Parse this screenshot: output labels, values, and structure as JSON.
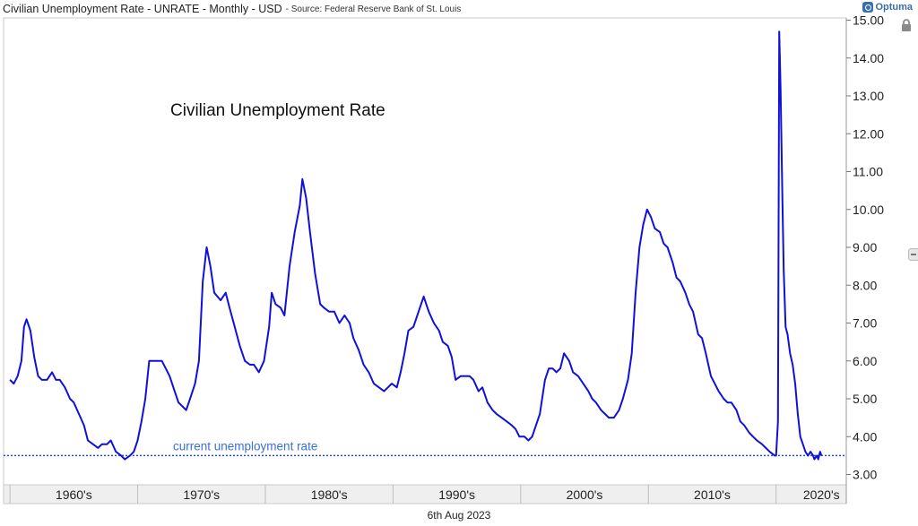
{
  "header": {
    "title": "Civilian Unemployment Rate - UNRATE - Monthly - USD",
    "source": "- Source: Federal Reserve Bank of St. Louis",
    "logo": "Optuma"
  },
  "footer": {
    "date": "6th Aug 2023"
  },
  "icons": {
    "lock": "lock-icon",
    "scroll": "scroll-handle-icon"
  },
  "colors": {
    "line": "#1010dd",
    "reference": "#2255cc",
    "annotation": "#3a6fd8"
  },
  "chart_data": {
    "type": "line",
    "title": "Civilian Unemployment Rate",
    "xlabel": "",
    "ylabel": "",
    "x_range": [
      1959.5,
      2025.5
    ],
    "ylim": [
      2.8,
      15.2
    ],
    "y_ticks": [
      "3.00",
      "4.00",
      "5.00",
      "6.00",
      "7.00",
      "8.00",
      "9.00",
      "10.00",
      "11.00",
      "12.00",
      "13.00",
      "14.00",
      "15.00"
    ],
    "y_axis_position": "right",
    "x_labels": [
      {
        "label": "1960's",
        "start": 1960
      },
      {
        "label": "1970's",
        "start": 1970
      },
      {
        "label": "1980's",
        "start": 1980
      },
      {
        "label": "1990's",
        "start": 1990
      },
      {
        "label": "2000's",
        "start": 2000
      },
      {
        "label": "2010's",
        "start": 2010
      },
      {
        "label": "2020's",
        "start": 2020
      }
    ],
    "grid": false,
    "reference_line": {
      "label": "current unemployment rate",
      "value": 3.5
    },
    "series": [
      {
        "values": [
          [
            1960.0,
            5.5
          ],
          [
            1960.3,
            5.4
          ],
          [
            1960.6,
            5.6
          ],
          [
            1960.9,
            6.0
          ],
          [
            1961.1,
            6.9
          ],
          [
            1961.3,
            7.1
          ],
          [
            1961.6,
            6.8
          ],
          [
            1961.9,
            6.1
          ],
          [
            1962.2,
            5.6
          ],
          [
            1962.5,
            5.5
          ],
          [
            1962.9,
            5.5
          ],
          [
            1963.3,
            5.7
          ],
          [
            1963.6,
            5.5
          ],
          [
            1963.9,
            5.5
          ],
          [
            1964.3,
            5.3
          ],
          [
            1964.7,
            5.0
          ],
          [
            1965.0,
            4.9
          ],
          [
            1965.4,
            4.6
          ],
          [
            1965.8,
            4.3
          ],
          [
            1966.1,
            3.9
          ],
          [
            1966.5,
            3.8
          ],
          [
            1966.9,
            3.7
          ],
          [
            1967.2,
            3.8
          ],
          [
            1967.6,
            3.8
          ],
          [
            1967.9,
            3.9
          ],
          [
            1968.3,
            3.6
          ],
          [
            1968.7,
            3.5
          ],
          [
            1969.0,
            3.4
          ],
          [
            1969.4,
            3.5
          ],
          [
            1969.7,
            3.6
          ],
          [
            1970.0,
            3.9
          ],
          [
            1970.3,
            4.4
          ],
          [
            1970.6,
            5.0
          ],
          [
            1970.9,
            6.0
          ],
          [
            1971.3,
            6.0
          ],
          [
            1971.6,
            6.0
          ],
          [
            1971.9,
            6.0
          ],
          [
            1972.2,
            5.8
          ],
          [
            1972.5,
            5.6
          ],
          [
            1972.9,
            5.2
          ],
          [
            1973.2,
            4.9
          ],
          [
            1973.5,
            4.8
          ],
          [
            1973.8,
            4.7
          ],
          [
            1974.2,
            5.1
          ],
          [
            1974.5,
            5.4
          ],
          [
            1974.8,
            6.0
          ],
          [
            1975.1,
            8.1
          ],
          [
            1975.4,
            9.0
          ],
          [
            1975.7,
            8.5
          ],
          [
            1976.0,
            7.8
          ],
          [
            1976.5,
            7.6
          ],
          [
            1976.9,
            7.8
          ],
          [
            1977.2,
            7.4
          ],
          [
            1977.6,
            6.9
          ],
          [
            1978.0,
            6.4
          ],
          [
            1978.4,
            6.0
          ],
          [
            1978.8,
            5.9
          ],
          [
            1979.1,
            5.9
          ],
          [
            1979.5,
            5.7
          ],
          [
            1979.9,
            6.0
          ],
          [
            1980.3,
            6.9
          ],
          [
            1980.5,
            7.8
          ],
          [
            1980.8,
            7.5
          ],
          [
            1981.2,
            7.4
          ],
          [
            1981.5,
            7.2
          ],
          [
            1981.9,
            8.5
          ],
          [
            1982.3,
            9.4
          ],
          [
            1982.7,
            10.1
          ],
          [
            1982.9,
            10.8
          ],
          [
            1983.2,
            10.3
          ],
          [
            1983.5,
            9.4
          ],
          [
            1983.9,
            8.3
          ],
          [
            1984.3,
            7.5
          ],
          [
            1984.6,
            7.4
          ],
          [
            1985.0,
            7.3
          ],
          [
            1985.4,
            7.3
          ],
          [
            1985.8,
            7.0
          ],
          [
            1986.2,
            7.2
          ],
          [
            1986.6,
            7.0
          ],
          [
            1986.9,
            6.6
          ],
          [
            1987.3,
            6.3
          ],
          [
            1987.7,
            5.9
          ],
          [
            1988.1,
            5.7
          ],
          [
            1988.5,
            5.4
          ],
          [
            1988.9,
            5.3
          ],
          [
            1989.3,
            5.2
          ],
          [
            1989.6,
            5.3
          ],
          [
            1989.9,
            5.4
          ],
          [
            1990.3,
            5.3
          ],
          [
            1990.6,
            5.7
          ],
          [
            1990.9,
            6.2
          ],
          [
            1991.2,
            6.8
          ],
          [
            1991.6,
            6.9
          ],
          [
            1992.0,
            7.3
          ],
          [
            1992.4,
            7.7
          ],
          [
            1992.8,
            7.3
          ],
          [
            1993.2,
            7.0
          ],
          [
            1993.6,
            6.8
          ],
          [
            1993.9,
            6.5
          ],
          [
            1994.3,
            6.4
          ],
          [
            1994.6,
            6.1
          ],
          [
            1994.9,
            5.5
          ],
          [
            1995.3,
            5.6
          ],
          [
            1995.6,
            5.6
          ],
          [
            1996.0,
            5.6
          ],
          [
            1996.3,
            5.5
          ],
          [
            1996.7,
            5.2
          ],
          [
            1997.0,
            5.3
          ],
          [
            1997.4,
            4.9
          ],
          [
            1997.8,
            4.7
          ],
          [
            1998.1,
            4.6
          ],
          [
            1998.5,
            4.5
          ],
          [
            1998.9,
            4.4
          ],
          [
            1999.3,
            4.3
          ],
          [
            1999.6,
            4.2
          ],
          [
            1999.9,
            4.0
          ],
          [
            2000.3,
            4.0
          ],
          [
            2000.6,
            3.9
          ],
          [
            2000.9,
            4.0
          ],
          [
            2001.2,
            4.3
          ],
          [
            2001.5,
            4.6
          ],
          [
            2001.9,
            5.5
          ],
          [
            2002.2,
            5.8
          ],
          [
            2002.5,
            5.8
          ],
          [
            2002.8,
            5.7
          ],
          [
            2003.1,
            5.8
          ],
          [
            2003.4,
            6.2
          ],
          [
            2003.8,
            6.0
          ],
          [
            2004.1,
            5.7
          ],
          [
            2004.5,
            5.6
          ],
          [
            2004.9,
            5.4
          ],
          [
            2005.3,
            5.2
          ],
          [
            2005.6,
            5.0
          ],
          [
            2005.9,
            4.9
          ],
          [
            2006.3,
            4.7
          ],
          [
            2006.6,
            4.6
          ],
          [
            2006.9,
            4.5
          ],
          [
            2007.3,
            4.5
          ],
          [
            2007.7,
            4.7
          ],
          [
            2008.0,
            5.0
          ],
          [
            2008.4,
            5.5
          ],
          [
            2008.7,
            6.2
          ],
          [
            2009.0,
            7.8
          ],
          [
            2009.3,
            9.0
          ],
          [
            2009.6,
            9.6
          ],
          [
            2009.9,
            10.0
          ],
          [
            2010.2,
            9.8
          ],
          [
            2010.5,
            9.5
          ],
          [
            2010.9,
            9.4
          ],
          [
            2011.2,
            9.1
          ],
          [
            2011.5,
            9.0
          ],
          [
            2011.9,
            8.6
          ],
          [
            2012.2,
            8.2
          ],
          [
            2012.5,
            8.1
          ],
          [
            2012.9,
            7.8
          ],
          [
            2013.2,
            7.5
          ],
          [
            2013.5,
            7.3
          ],
          [
            2013.9,
            6.7
          ],
          [
            2014.2,
            6.6
          ],
          [
            2014.5,
            6.2
          ],
          [
            2014.9,
            5.6
          ],
          [
            2015.2,
            5.4
          ],
          [
            2015.5,
            5.2
          ],
          [
            2015.9,
            5.0
          ],
          [
            2016.2,
            4.9
          ],
          [
            2016.5,
            4.9
          ],
          [
            2016.9,
            4.7
          ],
          [
            2017.2,
            4.4
          ],
          [
            2017.5,
            4.3
          ],
          [
            2017.9,
            4.1
          ],
          [
            2018.2,
            4.0
          ],
          [
            2018.5,
            3.9
          ],
          [
            2018.9,
            3.8
          ],
          [
            2019.2,
            3.7
          ],
          [
            2019.5,
            3.6
          ],
          [
            2019.9,
            3.5
          ],
          [
            2020.0,
            3.5
          ],
          [
            2020.15,
            4.4
          ],
          [
            2020.25,
            14.7
          ],
          [
            2020.35,
            13.2
          ],
          [
            2020.5,
            10.2
          ],
          [
            2020.6,
            8.4
          ],
          [
            2020.75,
            6.9
          ],
          [
            2020.9,
            6.7
          ],
          [
            2021.1,
            6.2
          ],
          [
            2021.3,
            5.9
          ],
          [
            2021.5,
            5.4
          ],
          [
            2021.7,
            4.6
          ],
          [
            2021.9,
            4.0
          ],
          [
            2022.1,
            3.8
          ],
          [
            2022.3,
            3.6
          ],
          [
            2022.5,
            3.5
          ],
          [
            2022.7,
            3.6
          ],
          [
            2022.9,
            3.5
          ],
          [
            2023.0,
            3.4
          ],
          [
            2023.2,
            3.5
          ],
          [
            2023.3,
            3.4
          ],
          [
            2023.45,
            3.6
          ],
          [
            2023.55,
            3.5
          ]
        ]
      }
    ]
  }
}
